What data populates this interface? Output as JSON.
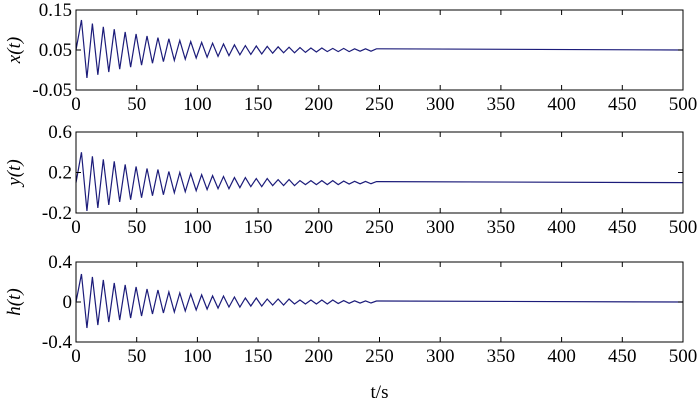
{
  "chart_data": [
    {
      "type": "line",
      "ylabel": "x(t)",
      "x": [
        0,
        4.5,
        9,
        13.5,
        18,
        22.5,
        27,
        31.5,
        36,
        40.5,
        45,
        49.5,
        54,
        58.5,
        63,
        67.5,
        72,
        76.5,
        81,
        85.5,
        90,
        94.5,
        99,
        103.5,
        108,
        112.5,
        117,
        121.5,
        126,
        130.5,
        135,
        139.5,
        144,
        148.5,
        153,
        157.5,
        162,
        166.5,
        171,
        175.5,
        180,
        184.5,
        189,
        193.5,
        198,
        202.5,
        207,
        211.5,
        216,
        220.5,
        225,
        229.5,
        234,
        238.5,
        243,
        247.5,
        500
      ],
      "series": [
        {
          "color": "#1c1c7a",
          "values": [
            0.05,
            0.125,
            -0.02,
            0.116,
            -0.012,
            0.108,
            -0.005,
            0.102,
            0.002,
            0.095,
            0.007,
            0.09,
            0.012,
            0.085,
            0.017,
            0.081,
            0.021,
            0.078,
            0.024,
            0.074,
            0.027,
            0.071,
            0.03,
            0.069,
            0.032,
            0.067,
            0.034,
            0.065,
            0.036,
            0.063,
            0.038,
            0.061,
            0.039,
            0.06,
            0.04,
            0.059,
            0.042,
            0.058,
            0.043,
            0.057,
            0.043,
            0.056,
            0.044,
            0.055,
            0.045,
            0.055,
            0.046,
            0.054,
            0.046,
            0.054,
            0.046,
            0.053,
            0.047,
            0.053,
            0.047,
            0.053,
            0.05
          ]
        }
      ],
      "xlim": [
        0,
        500
      ],
      "xticks": [
        0,
        50,
        100,
        150,
        200,
        250,
        300,
        350,
        400,
        450,
        500
      ],
      "ylim": [
        -0.05,
        0.15
      ],
      "yticks": [
        -0.05,
        0.05,
        0.15
      ]
    },
    {
      "type": "line",
      "ylabel": "y(t)",
      "x": [
        0,
        4.5,
        9,
        13.5,
        18,
        22.5,
        27,
        31.5,
        36,
        40.5,
        45,
        49.5,
        54,
        58.5,
        63,
        67.5,
        72,
        76.5,
        81,
        85.5,
        90,
        94.5,
        99,
        103.5,
        108,
        112.5,
        117,
        121.5,
        126,
        130.5,
        135,
        139.5,
        144,
        148.5,
        153,
        157.5,
        162,
        166.5,
        171,
        175.5,
        180,
        184.5,
        189,
        193.5,
        198,
        202.5,
        207,
        211.5,
        216,
        220.5,
        225,
        229.5,
        234,
        238.5,
        243,
        247.5,
        500
      ],
      "series": [
        {
          "color": "#1c1c7a",
          "values": [
            0.1,
            0.4,
            -0.18,
            0.36,
            -0.15,
            0.33,
            -0.12,
            0.31,
            -0.09,
            0.28,
            -0.07,
            0.26,
            -0.05,
            0.24,
            -0.03,
            0.23,
            -0.02,
            0.21,
            0.0,
            0.2,
            0.01,
            0.19,
            0.02,
            0.18,
            0.03,
            0.17,
            0.04,
            0.16,
            0.04,
            0.15,
            0.05,
            0.15,
            0.06,
            0.14,
            0.06,
            0.14,
            0.07,
            0.13,
            0.07,
            0.13,
            0.07,
            0.12,
            0.08,
            0.12,
            0.08,
            0.12,
            0.08,
            0.12,
            0.08,
            0.115,
            0.086,
            0.113,
            0.088,
            0.112,
            0.089,
            0.11,
            0.1
          ]
        }
      ],
      "xlim": [
        0,
        500
      ],
      "xticks": [
        0,
        50,
        100,
        150,
        200,
        250,
        300,
        350,
        400,
        450,
        500
      ],
      "ylim": [
        -0.2,
        0.6
      ],
      "yticks": [
        -0.2,
        0.2,
        0.6
      ]
    },
    {
      "type": "line",
      "ylabel": "h(t)",
      "xlabel": "t/s",
      "x": [
        0,
        4.5,
        9,
        13.5,
        18,
        22.5,
        27,
        31.5,
        36,
        40.5,
        45,
        49.5,
        54,
        58.5,
        63,
        67.5,
        72,
        76.5,
        81,
        85.5,
        90,
        94.5,
        99,
        103.5,
        108,
        112.5,
        117,
        121.5,
        126,
        130.5,
        135,
        139.5,
        144,
        148.5,
        153,
        157.5,
        162,
        166.5,
        171,
        175.5,
        180,
        184.5,
        189,
        193.5,
        198,
        202.5,
        207,
        211.5,
        216,
        220.5,
        225,
        229.5,
        234,
        238.5,
        243,
        247.5,
        500
      ],
      "series": [
        {
          "color": "#1c1c7a",
          "values": [
            0,
            0.28,
            -0.26,
            0.25,
            -0.23,
            0.22,
            -0.2,
            0.19,
            -0.18,
            0.17,
            -0.16,
            0.15,
            -0.14,
            0.13,
            -0.12,
            0.12,
            -0.11,
            0.1,
            -0.1,
            0.09,
            -0.09,
            0.08,
            -0.08,
            0.07,
            -0.07,
            0.06,
            -0.06,
            0.06,
            -0.05,
            0.05,
            -0.05,
            0.04,
            -0.04,
            0.04,
            -0.04,
            0.03,
            -0.03,
            0.03,
            -0.03,
            0.03,
            -0.02,
            0.02,
            -0.02,
            0.02,
            -0.02,
            0.02,
            -0.02,
            0.02,
            -0.015,
            0.014,
            -0.013,
            0.012,
            -0.011,
            0.011,
            -0.01,
            0.01,
            0
          ]
        }
      ],
      "xlim": [
        0,
        500
      ],
      "xticks": [
        0,
        50,
        100,
        150,
        200,
        250,
        300,
        350,
        400,
        450,
        500
      ],
      "ylim": [
        -0.4,
        0.4
      ],
      "yticks": [
        -0.4,
        0,
        0.4
      ]
    }
  ]
}
